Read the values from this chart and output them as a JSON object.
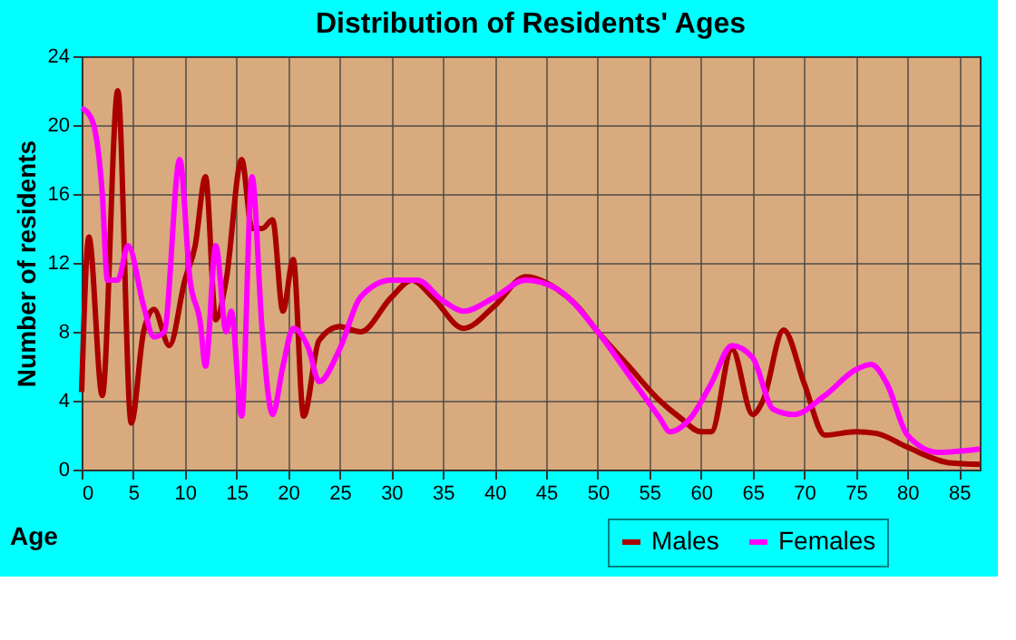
{
  "chart_data": {
    "type": "line",
    "title": "Distribution of Residents' Ages",
    "xlabel": "Age",
    "ylabel": "Number of residents",
    "xlim": [
      0,
      87
    ],
    "xticks": [
      0,
      5,
      10,
      15,
      20,
      25,
      30,
      35,
      40,
      45,
      50,
      55,
      60,
      65,
      70,
      75,
      80,
      85
    ],
    "ylim": [
      0,
      24
    ],
    "yticks": [
      0,
      4,
      8,
      12,
      16,
      20,
      24
    ],
    "grid": true,
    "legend": "bottom right",
    "marker": "none",
    "line_style": "solid",
    "series": [
      {
        "name": "Males",
        "color": "#aa0000",
        "x": [
          0,
          0.7,
          2,
          3.5,
          4.8,
          6,
          7,
          8.5,
          10,
          11,
          12,
          13,
          14,
          15.5,
          16.5,
          17.5,
          18.5,
          19.5,
          20.5,
          21.5,
          23,
          25,
          27,
          30,
          32,
          34,
          37,
          40,
          43,
          46,
          48,
          50,
          53,
          56,
          58,
          60,
          61,
          63,
          65,
          66,
          68,
          70,
          72,
          75,
          77,
          80,
          84,
          87
        ],
        "values": [
          4.5,
          13.5,
          4.3,
          22,
          2.7,
          8,
          9.3,
          7.2,
          11,
          13,
          17,
          8.7,
          11,
          18,
          14,
          14,
          14.5,
          9.2,
          12.2,
          3.1,
          7.5,
          8.3,
          8,
          10,
          11,
          10,
          8.2,
          9.5,
          11.2,
          10.5,
          9.5,
          8,
          6,
          4,
          3,
          2.2,
          2.2,
          7,
          3.2,
          4,
          8.1,
          5,
          2,
          2.2,
          2.1,
          1.3,
          0.4,
          0.3
        ]
      },
      {
        "name": "Females",
        "color": "#ff00ff",
        "x": [
          0,
          1,
          2,
          2.5,
          3.5,
          4.5,
          6,
          7,
          8,
          9.5,
          10.5,
          11.5,
          12,
          13,
          14,
          14.5,
          15.5,
          16.5,
          17.5,
          18.5,
          19.5,
          20.5,
          22,
          23,
          25,
          27,
          30,
          32.5,
          35,
          37,
          40,
          43,
          46,
          50,
          53,
          56,
          57,
          59,
          61,
          63,
          65,
          67,
          69,
          72,
          75,
          76.5,
          78,
          80,
          83,
          87
        ],
        "values": [
          21,
          20.3,
          16,
          11,
          11,
          13,
          9.5,
          7.7,
          8,
          18,
          11,
          8.5,
          6,
          13,
          8,
          9.2,
          3.1,
          17,
          8,
          3.2,
          6,
          8.2,
          7,
          5.1,
          7,
          10,
          11,
          11,
          9.8,
          9.2,
          10,
          11,
          10.5,
          8,
          5.5,
          3,
          2.2,
          3,
          5,
          7.2,
          6.5,
          3.5,
          3.2,
          4.3,
          5.8,
          6.1,
          5,
          2,
          1,
          1.2
        ]
      }
    ]
  }
}
